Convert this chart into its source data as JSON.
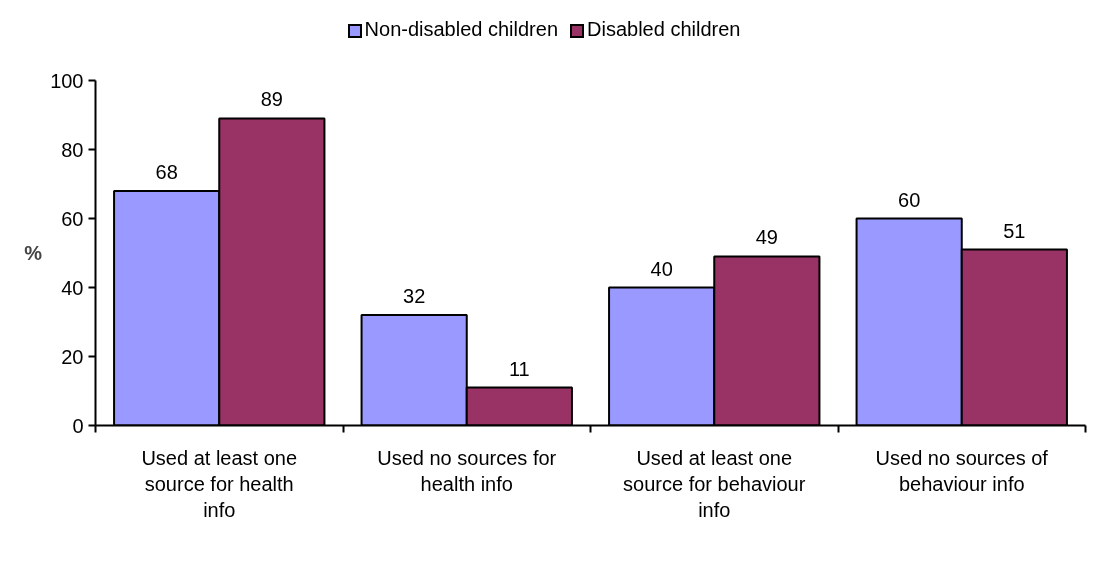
{
  "chart_data": {
    "type": "bar",
    "ylabel": "%",
    "categories": [
      "Used at least one source for health info",
      "Used no sources for health info",
      "Used at least one source for behaviour info",
      "Used no sources of behaviour info"
    ],
    "series": [
      {
        "name": "Non-disabled children",
        "color": "#9999ff",
        "values": [
          68,
          32,
          40,
          60
        ]
      },
      {
        "name": "Disabled children",
        "color": "#993366",
        "values": [
          89,
          11,
          49,
          51
        ]
      }
    ],
    "ylim": [
      0,
      100
    ],
    "yticks": [
      0,
      20,
      40,
      60,
      80,
      100
    ],
    "grid": false,
    "legend": "top",
    "data_labels": true
  }
}
